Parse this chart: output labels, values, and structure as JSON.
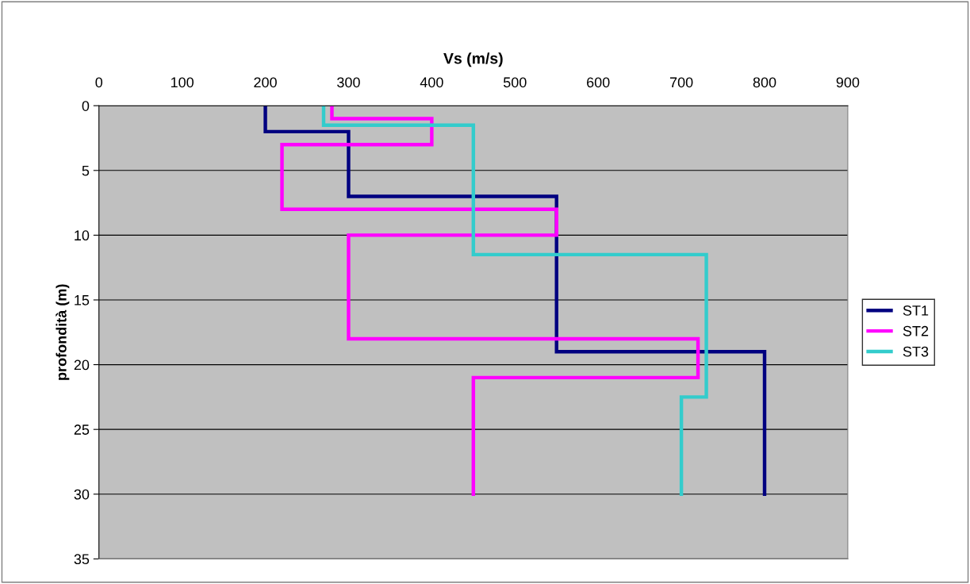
{
  "chart_data": {
    "type": "line",
    "xlabel": "Vs (m/s)",
    "ylabel": "profondità (m)",
    "xlim": [
      0,
      900
    ],
    "xticks": [
      0,
      100,
      200,
      300,
      400,
      500,
      600,
      700,
      800,
      900
    ],
    "ylim": [
      35,
      0
    ],
    "yticks": [
      0,
      5,
      10,
      15,
      20,
      25,
      30,
      35
    ],
    "grid": "y",
    "legend": "right",
    "marker": "none",
    "line_style": "solid",
    "series": [
      {
        "name": "ST1",
        "color": "#000080",
        "x": [
          200,
          200,
          300,
          300,
          550,
          550,
          800,
          800
        ],
        "values": [
          0,
          2,
          2,
          7,
          7,
          19,
          19,
          30
        ]
      },
      {
        "name": "ST2",
        "color": "#ff00ff",
        "x": [
          280,
          280,
          400,
          400,
          220,
          220,
          550,
          550,
          300,
          300,
          720,
          720,
          450,
          450
        ],
        "values": [
          0,
          1,
          1,
          3,
          3,
          8,
          8,
          10,
          10,
          18,
          18,
          21,
          21,
          30
        ]
      },
      {
        "name": "ST3",
        "color": "#33cccc",
        "x": [
          270,
          270,
          450,
          450,
          730,
          730,
          700,
          700
        ],
        "values": [
          0,
          1.5,
          1.5,
          11.5,
          11.5,
          22.5,
          22.5,
          30
        ]
      }
    ]
  }
}
